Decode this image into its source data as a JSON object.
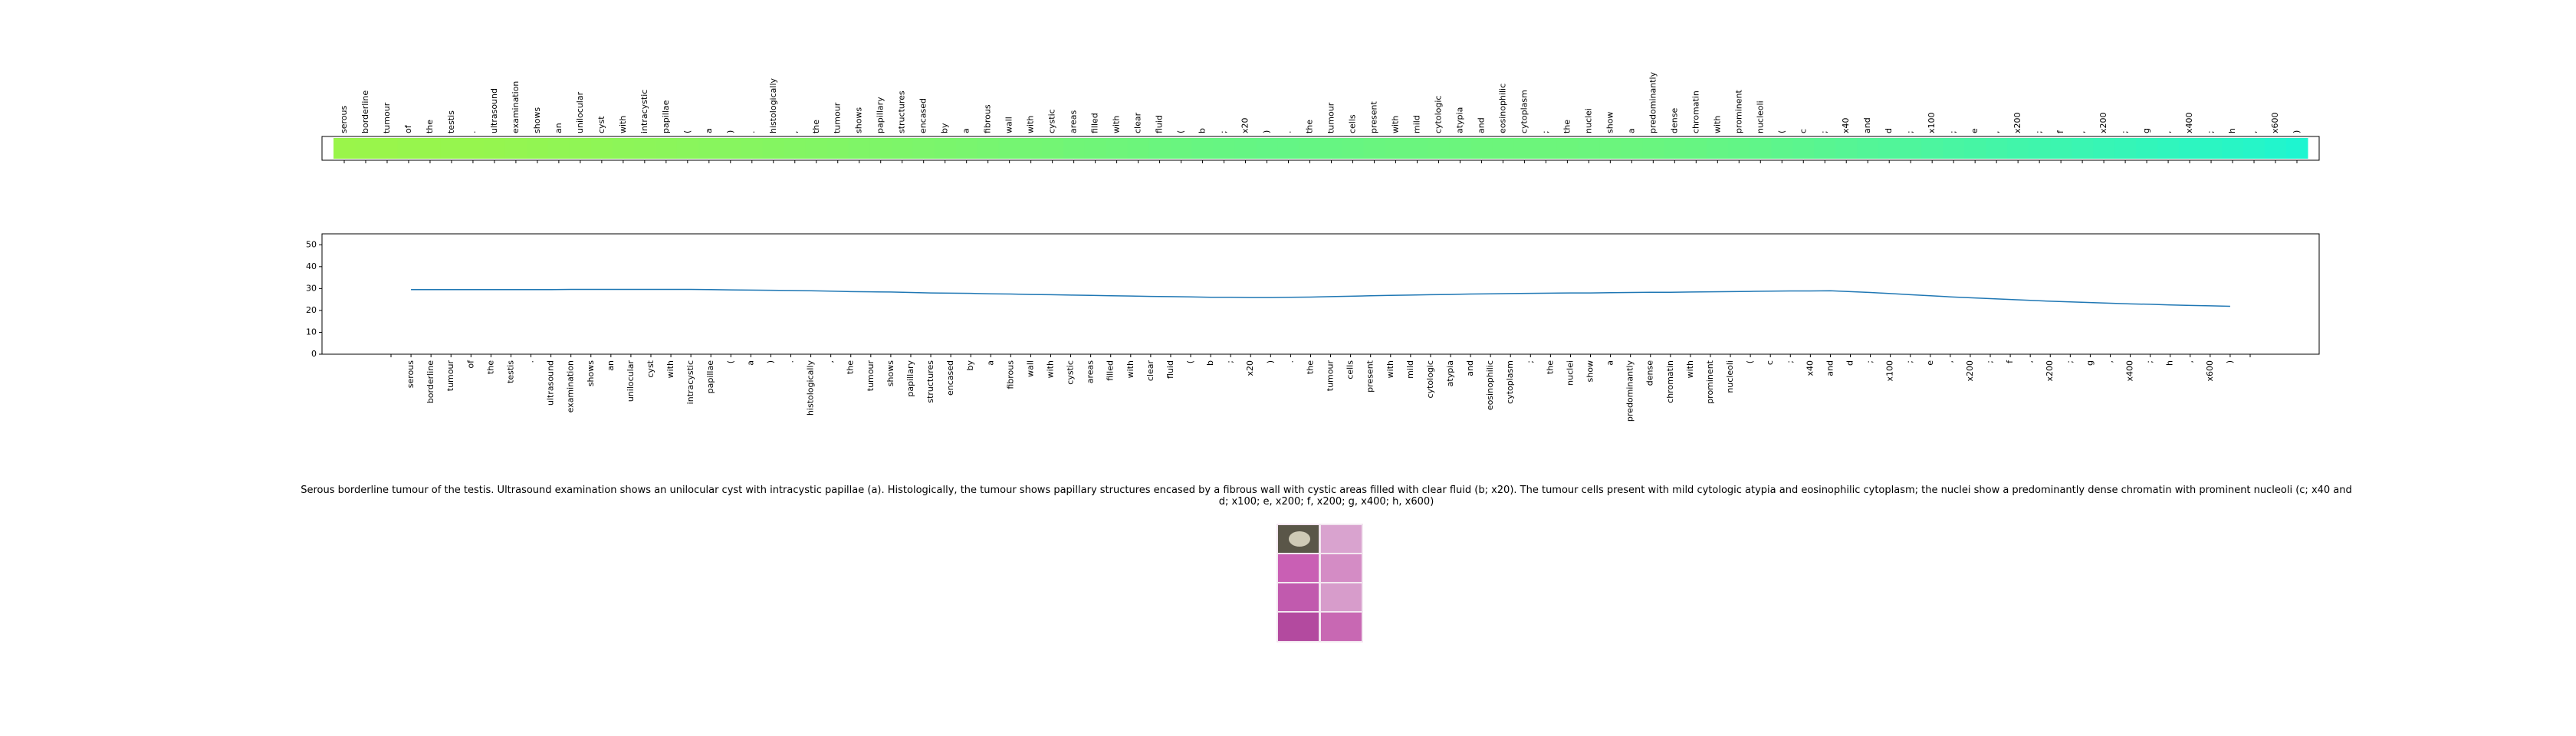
{
  "chart_data": [
    {
      "type": "heatmap",
      "colormap": [
        "#9af54a",
        "#1ef5d0"
      ],
      "categories": [
        "serous",
        "borderline",
        "tumour",
        "of",
        "the",
        "testis",
        ".",
        "ultrasound",
        "examination",
        "shows",
        "an",
        "unilocular",
        "cyst",
        "with",
        "intracystic",
        "papillae",
        "(",
        "a",
        ")",
        ".",
        "histologically",
        ",",
        "the",
        "tumour",
        "shows",
        "papillary",
        "structures",
        "encased",
        "by",
        "a",
        "fibrous",
        "wall",
        "with",
        "cystic",
        "areas",
        "filled",
        "with",
        "clear",
        "fluid",
        "(",
        "b",
        ";",
        "x20",
        ")",
        ".",
        "the",
        "tumour",
        "cells",
        "present",
        "with",
        "mild",
        "cytologic",
        "atypia",
        "and",
        "eosinophilic",
        "cytoplasm",
        ";",
        "the",
        "nuclei",
        "show",
        "a",
        "predominantly",
        "dense",
        "chromatin",
        "with",
        "prominent",
        "nucleoli",
        "(",
        "c",
        ";",
        "x40",
        "and",
        "d",
        ";",
        "x100",
        ";",
        "e",
        ",",
        "x200",
        ";",
        "f",
        ",",
        "x200",
        ";",
        "g",
        ",",
        "x400",
        ";",
        "h",
        ",",
        "x600",
        ")"
      ],
      "values": [
        0.02,
        0.03,
        0.03,
        0.04,
        0.04,
        0.05,
        0.05,
        0.06,
        0.07,
        0.08,
        0.09,
        0.1,
        0.11,
        0.12,
        0.13,
        0.14,
        0.15,
        0.16,
        0.17,
        0.18,
        0.19,
        0.2,
        0.21,
        0.22,
        0.23,
        0.24,
        0.25,
        0.26,
        0.27,
        0.28,
        0.3,
        0.31,
        0.32,
        0.33,
        0.35,
        0.36,
        0.37,
        0.38,
        0.4,
        0.41,
        0.42,
        0.43,
        0.44,
        0.45,
        0.45,
        0.44,
        0.43,
        0.42,
        0.41,
        0.4,
        0.4,
        0.39,
        0.39,
        0.38,
        0.38,
        0.38,
        0.38,
        0.38,
        0.39,
        0.39,
        0.4,
        0.41,
        0.42,
        0.43,
        0.45,
        0.46,
        0.48,
        0.5,
        0.52,
        0.54,
        0.56,
        0.58,
        0.6,
        0.62,
        0.64,
        0.66,
        0.68,
        0.7,
        0.72,
        0.74,
        0.76,
        0.78,
        0.8,
        0.82,
        0.84,
        0.86,
        0.88,
        0.9,
        0.92,
        0.94,
        0.97,
        1.0
      ]
    },
    {
      "type": "line",
      "categories": [
        null,
        "serous",
        "borderline",
        "tumour",
        "of",
        "the",
        "testis",
        ".",
        "ultrasound",
        "examination",
        "shows",
        "an",
        "unilocular",
        "cyst",
        "with",
        "intracystic",
        "papillae",
        "(",
        "a",
        ")",
        ".",
        "histologically",
        ",",
        "the",
        "tumour",
        "shows",
        "papillary",
        "structures",
        "encased",
        "by",
        "a",
        "fibrous",
        "wall",
        "with",
        "cystic",
        "areas",
        "filled",
        "with",
        "clear",
        "fluid",
        "(",
        "b",
        ";",
        "x20",
        ")",
        ".",
        "the",
        "tumour",
        "cells",
        "present",
        "with",
        "mild",
        "cytologic",
        "atypia",
        "and",
        "eosinophilic",
        "cytoplasm",
        ";",
        "the",
        "nuclei",
        "show",
        "a",
        "predominantly",
        "dense",
        "chromatin",
        "with",
        "prominent",
        "nucleoli",
        "(",
        "c",
        ";",
        "x40",
        "and",
        "d",
        ";",
        "x100",
        ";",
        "e",
        ",",
        "x200",
        ";",
        "f",
        ",",
        "x200",
        ";",
        "g",
        ",",
        "x400",
        ";",
        "h",
        ",",
        "x600",
        ")",
        null
      ],
      "series": [
        {
          "color": "#1f77b4",
          "values": [
            null,
            29.5,
            29.5,
            29.5,
            29.5,
            29.5,
            29.5,
            29.5,
            29.5,
            29.6,
            29.6,
            29.6,
            29.6,
            29.6,
            29.6,
            29.6,
            29.5,
            29.4,
            29.3,
            29.2,
            29.1,
            29.0,
            28.8,
            28.6,
            28.5,
            28.4,
            28.2,
            28.0,
            27.9,
            27.8,
            27.6,
            27.5,
            27.3,
            27.2,
            27.0,
            26.9,
            26.7,
            26.6,
            26.4,
            26.3,
            26.2,
            26.0,
            26.0,
            25.9,
            25.9,
            26.0,
            26.1,
            26.3,
            26.5,
            26.7,
            26.9,
            27.0,
            27.2,
            27.3,
            27.5,
            27.6,
            27.7,
            27.8,
            27.9,
            28.0,
            28.0,
            28.1,
            28.2,
            28.3,
            28.3,
            28.4,
            28.5,
            28.6,
            28.7,
            28.8,
            28.9,
            28.9,
            29.0,
            28.6,
            28.2,
            27.7,
            27.2,
            26.7,
            26.2,
            25.8,
            25.4,
            25.0,
            24.6,
            24.2,
            23.9,
            23.6,
            23.3,
            23.0,
            22.8,
            22.5,
            22.3,
            22.1,
            21.9,
            null
          ]
        }
      ],
      "ylim": [
        0,
        55
      ],
      "yticks": [
        0,
        10,
        20,
        30,
        40,
        50
      ]
    }
  ],
  "caption": "Serous borderline tumour of the testis. Ultrasound examination shows an unilocular cyst with intracystic papillae (a). Histologically, the tumour shows papillary structures encased by a fibrous wall with cystic areas filled with clear fluid (b; x20). The tumour cells present with mild cytologic atypia and eosinophilic cytoplasm; the nuclei show a predominantly dense chromatin with prominent nucleoli (c; x40 and d; x100; e, x200; f, x200; g, x400; h, x600)"
}
